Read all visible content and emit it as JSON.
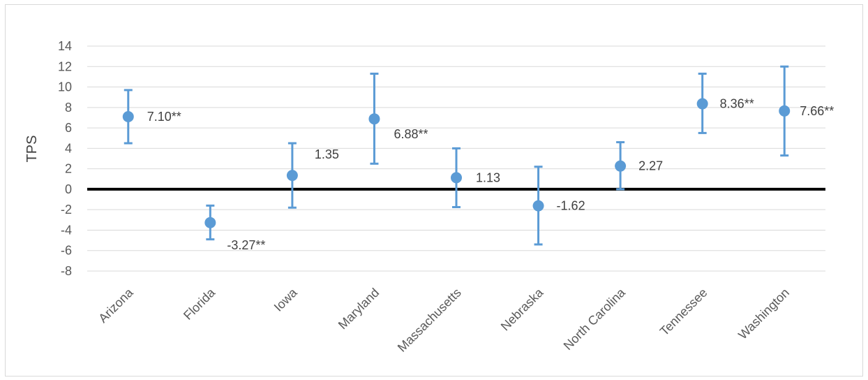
{
  "chart_data": {
    "type": "scatter",
    "ylabel": "TPS",
    "xlabel": "",
    "ylim": [
      -8,
      14
    ],
    "yticks": [
      14,
      12,
      10,
      8,
      6,
      4,
      2,
      0,
      -2,
      -4,
      -6,
      -8
    ],
    "grid": true,
    "categories": [
      "Arizona",
      "Florida",
      "Iowa",
      "Maryland",
      "Massachusetts",
      "Nebraska",
      "North Carolina",
      "Tennessee",
      "Washington"
    ],
    "values": [
      7.1,
      -3.27,
      1.35,
      6.88,
      1.13,
      -1.62,
      2.27,
      8.36,
      7.66
    ],
    "error_low": [
      4.5,
      -4.9,
      -1.8,
      2.5,
      -1.75,
      -5.4,
      0.0,
      5.5,
      3.3
    ],
    "error_high": [
      9.7,
      -1.6,
      4.5,
      11.3,
      4.0,
      2.2,
      4.6,
      11.3,
      12.0
    ],
    "data_labels": [
      "7.10**",
      "-3.27**",
      "1.35",
      "6.88**",
      "1.13",
      "-1.62",
      "2.27",
      "8.36**",
      "7.66**"
    ],
    "colors": {
      "marker": "#5b9bd5",
      "zero_line": "#000000",
      "grid": "#d9d9d9"
    }
  }
}
